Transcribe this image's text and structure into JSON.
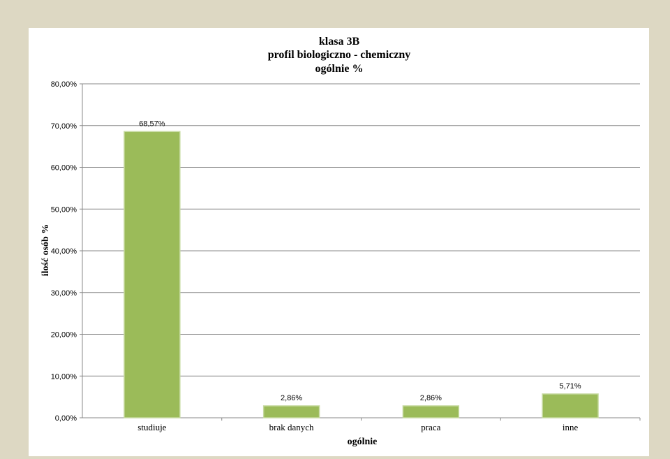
{
  "chart_data": {
    "type": "bar",
    "title": [
      "klasa 3B",
      "profil biologiczno - chemiczny",
      "ogólnie %"
    ],
    "xlabel": "ogólnie",
    "ylabel": "ilość osób %",
    "categories": [
      "studiuje",
      "brak danych",
      "praca",
      "inne"
    ],
    "values": [
      68.57,
      2.86,
      2.86,
      5.71
    ],
    "data_labels": [
      "68,57%",
      "2,86%",
      "2,86%",
      "5,71%"
    ],
    "ylim": [
      0,
      80
    ],
    "yticks": [
      0,
      10,
      20,
      30,
      40,
      50,
      60,
      70,
      80
    ],
    "ytick_labels": [
      "0,00%",
      "10,00%",
      "20,00%",
      "30,00%",
      "40,00%",
      "50,00%",
      "60,00%",
      "70,00%",
      "80,00%"
    ],
    "grid": true,
    "legend": "none",
    "colors": {
      "bar": "#9bbb59",
      "bar_edge": "#c6d9a0",
      "grid": "#898989",
      "page_bg": "#ddd8c3"
    }
  }
}
